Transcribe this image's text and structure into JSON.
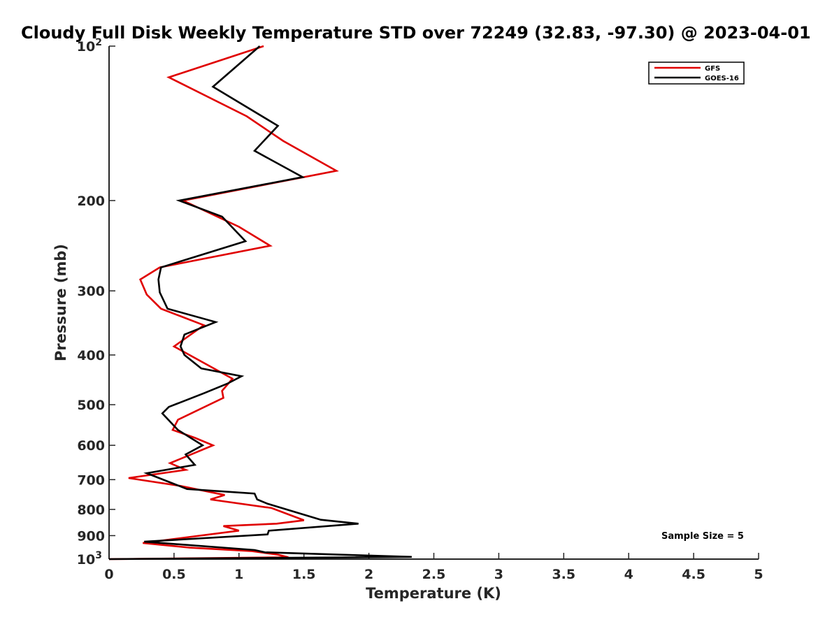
{
  "chart_data": {
    "type": "line",
    "title": "Cloudy Full Disk Weekly Temperature STD over 72249 (32.83, -97.30) @ 2023-04-01",
    "xlabel": "Temperature (K)",
    "ylabel": "Pressure (mb)",
    "xlim": [
      0,
      5
    ],
    "ylim": [
      1000,
      100
    ],
    "yscale": "log",
    "x_ticks": [
      "0",
      "0.5",
      "1",
      "1.5",
      "2",
      "2.5",
      "3",
      "3.5",
      "4",
      "4.5",
      "5"
    ],
    "y_ticks": [
      {
        "value": 100,
        "base": "10",
        "exp": "2"
      },
      {
        "value": 200,
        "base": "200",
        "exp": ""
      },
      {
        "value": 300,
        "base": "300",
        "exp": ""
      },
      {
        "value": 400,
        "base": "400",
        "exp": ""
      },
      {
        "value": 500,
        "base": "500",
        "exp": ""
      },
      {
        "value": 600,
        "base": "600",
        "exp": ""
      },
      {
        "value": 700,
        "base": "700",
        "exp": ""
      },
      {
        "value": 800,
        "base": "800",
        "exp": ""
      },
      {
        "value": 900,
        "base": "900",
        "exp": ""
      },
      {
        "value": 1000,
        "base": "10",
        "exp": "3"
      }
    ],
    "grid": false,
    "legend_position": "top-right",
    "annotation": "Sample Size = 5",
    "series": [
      {
        "name": "GFS",
        "color": "#e00000",
        "points": [
          [
            1.19,
            100
          ],
          [
            0.46,
            115
          ],
          [
            1.06,
            137
          ],
          [
            1.34,
            153
          ],
          [
            1.75,
            175
          ],
          [
            0.57,
            200
          ],
          [
            1.0,
            225
          ],
          [
            1.24,
            245
          ],
          [
            0.39,
            270
          ],
          [
            0.24,
            285
          ],
          [
            0.29,
            305
          ],
          [
            0.4,
            325
          ],
          [
            0.73,
            350
          ],
          [
            0.5,
            385
          ],
          [
            0.95,
            445
          ],
          [
            0.87,
            470
          ],
          [
            0.88,
            485
          ],
          [
            0.53,
            535
          ],
          [
            0.49,
            560
          ],
          [
            0.66,
            580
          ],
          [
            0.8,
            600
          ],
          [
            0.47,
            650
          ],
          [
            0.59,
            670
          ],
          [
            0.15,
            695
          ],
          [
            0.55,
            720
          ],
          [
            0.89,
            750
          ],
          [
            0.78,
            765
          ],
          [
            1.25,
            795
          ],
          [
            1.5,
            840
          ],
          [
            1.29,
            853
          ],
          [
            0.88,
            862
          ],
          [
            1.0,
            880
          ],
          [
            0.26,
            930
          ],
          [
            0.62,
            950
          ],
          [
            1.1,
            965
          ],
          [
            1.3,
            980
          ],
          [
            1.38,
            992
          ],
          [
            0.2,
            999
          ],
          [
            0.0,
            1000
          ]
        ]
      },
      {
        "name": "GOES-16",
        "color": "#000000",
        "points": [
          [
            1.16,
            100
          ],
          [
            0.8,
            120
          ],
          [
            1.3,
            143
          ],
          [
            1.12,
            160
          ],
          [
            1.49,
            180
          ],
          [
            0.54,
            200
          ],
          [
            0.87,
            215
          ],
          [
            1.05,
            240
          ],
          [
            0.4,
            270
          ],
          [
            0.38,
            285
          ],
          [
            0.39,
            302
          ],
          [
            0.45,
            325
          ],
          [
            0.82,
            345
          ],
          [
            0.58,
            365
          ],
          [
            0.55,
            385
          ],
          [
            0.58,
            400
          ],
          [
            0.71,
            425
          ],
          [
            1.02,
            440
          ],
          [
            0.91,
            455
          ],
          [
            0.73,
            475
          ],
          [
            0.46,
            505
          ],
          [
            0.41,
            520
          ],
          [
            0.53,
            560
          ],
          [
            0.72,
            600
          ],
          [
            0.59,
            625
          ],
          [
            0.66,
            655
          ],
          [
            0.29,
            680
          ],
          [
            0.6,
            730
          ],
          [
            1.12,
            745
          ],
          [
            1.14,
            765
          ],
          [
            1.22,
            780
          ],
          [
            1.63,
            838
          ],
          [
            1.92,
            853
          ],
          [
            1.23,
            880
          ],
          [
            1.22,
            895
          ],
          [
            0.27,
            925
          ],
          [
            1.12,
            960
          ],
          [
            1.2,
            970
          ],
          [
            2.33,
            990
          ],
          [
            0.0,
            1000
          ]
        ]
      }
    ]
  }
}
